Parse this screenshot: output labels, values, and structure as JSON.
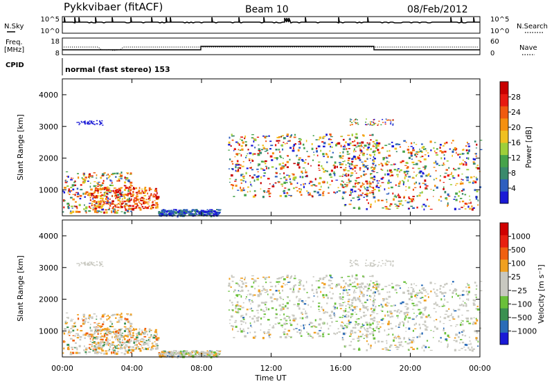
{
  "header": {
    "station": "Pykkvibaer (fitACF)",
    "beam": "Beam 10",
    "date": "08/Feb/2012"
  },
  "top_panels": {
    "nsky_label": "N.Sky",
    "nsky_ticks": [
      "10^5",
      "10^0"
    ],
    "nsearch_label": "N.Search",
    "nsearch_ticks": [
      "10^5",
      "10^0"
    ],
    "freq_label_1": "Freq.",
    "freq_label_2": "[MHz]",
    "freq_ticks": [
      "18",
      "8"
    ],
    "nave_label": "Nave",
    "nave_ticks": [
      "60",
      "0"
    ],
    "cpid_label": "CPID",
    "cpid_text": "normal (fast stereo) 153"
  },
  "chart_data": [
    {
      "type": "heatmap",
      "name": "power",
      "ylabel": "Slant Range [km]",
      "xlabel": "",
      "yticks": [
        "4000",
        "3000",
        "2000",
        "1000"
      ],
      "ylim": [
        180,
        4500
      ],
      "xlim": [
        0,
        24
      ],
      "colorbar_label": "Power [dB]",
      "colorbar_ticks": [
        "28",
        "24",
        "20",
        "16",
        "12",
        "8",
        "4"
      ],
      "colorbar_colors": [
        "#1a1ad6",
        "#2e5fbf",
        "#3a8a6c",
        "#46a34a",
        "#9ecf3a",
        "#f0c020",
        "#f59010",
        "#f05a10",
        "#e81a10",
        "#c80000"
      ],
      "scatter_regions": [
        {
          "t0": 0.0,
          "t1": 4.0,
          "r0": 300,
          "r1": 1600,
          "level": "mixed"
        },
        {
          "t0": 1.5,
          "t1": 5.5,
          "r0": 400,
          "r1": 1100,
          "level": "high"
        },
        {
          "t0": 5.5,
          "t1": 9.0,
          "r0": 200,
          "r1": 400,
          "level": "low"
        },
        {
          "t0": 9.5,
          "t1": 18.0,
          "r0": 800,
          "r1": 2800,
          "level": "mixed"
        },
        {
          "t0": 16.0,
          "t1": 24.0,
          "r0": 400,
          "r1": 2600,
          "level": "mixed"
        }
      ]
    },
    {
      "type": "heatmap",
      "name": "velocity",
      "ylabel": "Slant Range [km]",
      "xlabel": "Time UT",
      "yticks": [
        "4000",
        "3000",
        "2000",
        "1000"
      ],
      "xticks": [
        "00:00",
        "04:00",
        "08:00",
        "12:00",
        "16:00",
        "20:00",
        "00:00"
      ],
      "ylim": [
        180,
        4500
      ],
      "xlim": [
        0,
        24
      ],
      "colorbar_label": "Velocity [m s⁻¹]",
      "colorbar_ticks": [
        "1000",
        "500",
        "100",
        "25",
        "−25",
        "−100",
        "−500",
        "−1000"
      ],
      "colorbar_colors": [
        "#1a1ad6",
        "#2a6cb8",
        "#3a9050",
        "#6ac03a",
        "#c8c8c0",
        "#c8c8c0",
        "#f0a020",
        "#f06010",
        "#e82010",
        "#d00000"
      ]
    }
  ]
}
